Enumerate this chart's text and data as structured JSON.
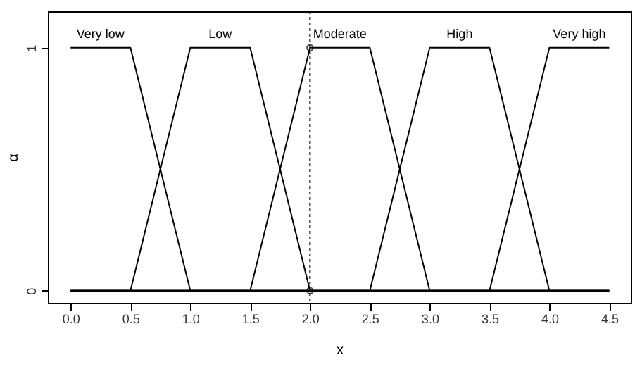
{
  "chart_data": {
    "type": "line",
    "xlabel": "x",
    "ylabel": "α",
    "xlim": [
      -0.19,
      4.68
    ],
    "ylim": [
      -0.05,
      1.15
    ],
    "xticks": [
      {
        "value": 0,
        "label": "0.0"
      },
      0.5,
      {
        "value": 1,
        "label": "1.0"
      },
      1.5,
      {
        "value": 2,
        "label": "2.0"
      },
      2.5,
      {
        "value": 3,
        "label": "3.0"
      },
      3.5,
      {
        "value": 4,
        "label": "4.0"
      },
      4.5
    ],
    "yticks": [
      0,
      1
    ],
    "line_style": "solid",
    "marker": "none",
    "series": [
      {
        "name": "Very low",
        "color": "#000000",
        "x": [
          0,
          0.5,
          1.0,
          4.5
        ],
        "values": [
          1,
          1,
          0,
          0
        ]
      },
      {
        "name": "Low",
        "color": "#000000",
        "x": [
          0,
          0.5,
          1.0,
          1.5,
          2.0,
          4.5
        ],
        "values": [
          0,
          0,
          1,
          1,
          0,
          0
        ]
      },
      {
        "name": "Moderate",
        "color": "#000000",
        "x": [
          0,
          1.5,
          2.0,
          2.5,
          3.0,
          4.5
        ],
        "values": [
          0,
          0,
          1,
          1,
          0,
          0
        ]
      },
      {
        "name": "High",
        "color": "#000000",
        "x": [
          0,
          2.5,
          3.0,
          3.5,
          4.0,
          4.5
        ],
        "values": [
          0,
          0,
          1,
          1,
          0,
          0
        ]
      },
      {
        "name": "Very high",
        "color": "#000000",
        "x": [
          0,
          3.5,
          4.0,
          4.5
        ],
        "values": [
          0,
          0,
          1,
          1
        ]
      },
      {
        "type": "scatter",
        "marker": "circle",
        "color": "#000000",
        "x": [
          2,
          2
        ],
        "values": [
          0,
          1
        ]
      }
    ],
    "ref_lines": [
      {
        "axis": "x",
        "value": 2,
        "line_style": "dotted",
        "color": "#000000"
      }
    ]
  }
}
